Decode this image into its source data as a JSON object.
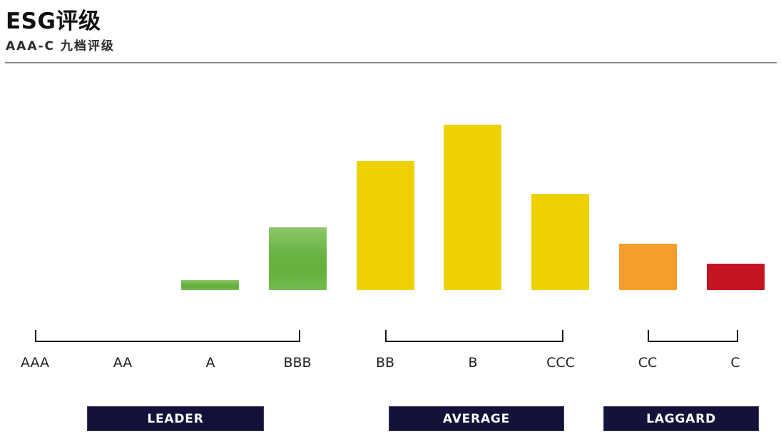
{
  "header": {
    "title": "ESG评级",
    "subtitle": "AAA-C 九档评级"
  },
  "chart_data": {
    "type": "bar",
    "title": "ESG评级",
    "subtitle": "AAA-C 九档评级",
    "categories": [
      "AAA",
      "AA",
      "A",
      "BBB",
      "BB",
      "B",
      "CCC",
      "CC",
      "C"
    ],
    "values": [
      0,
      0,
      6,
      38,
      78,
      100,
      58,
      28,
      16
    ],
    "value_unit": "relative bar height, percent of tallest bar (B = 100)",
    "bar_color_names": [
      null,
      null,
      "green",
      "green",
      "yellow",
      "yellow",
      "yellow",
      "orange",
      "red"
    ],
    "groups": [
      {
        "label": "LEADER",
        "from": "AAA",
        "to": "BBB"
      },
      {
        "label": "AVERAGE",
        "from": "BB",
        "to": "CCC"
      },
      {
        "label": "LAGGARD",
        "from": "CC",
        "to": "C"
      }
    ],
    "colors": {
      "green": "#6ab344",
      "green_gradient_top": "#8cc868",
      "yellow": "#edd100",
      "orange": "#f69e2c",
      "red": "#c41420",
      "group_box_navy": "#13123a",
      "bracket": "#1a1a1a",
      "divider_gray": "#8a8a8a"
    },
    "axes": "none (no gridlines, no value axis shown)",
    "legend": "none"
  }
}
